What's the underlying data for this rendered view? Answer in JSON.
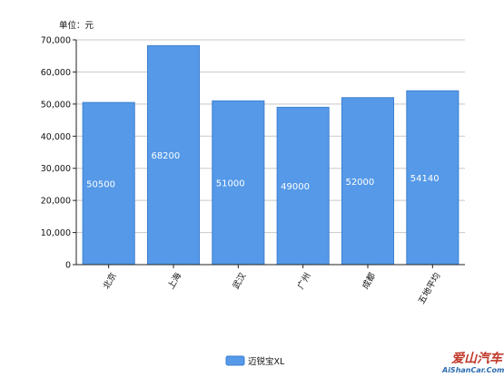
{
  "chart_data": {
    "type": "bar",
    "unit_label": "单位：元",
    "categories": [
      "北京",
      "上海",
      "武汉",
      "广州",
      "成都",
      "五地平均"
    ],
    "series": [
      {
        "name": "迈锐宝XL",
        "values": [
          50500,
          68200,
          51000,
          49000,
          52000,
          54140
        ],
        "color": "#5599e8"
      }
    ],
    "data_labels": [
      "50500",
      "68200",
      "51000",
      "49000",
      "52000",
      "54140"
    ],
    "ylim": [
      0,
      70000
    ],
    "yticks": [
      0,
      10000,
      20000,
      30000,
      40000,
      50000,
      60000,
      70000
    ],
    "ytick_labels": [
      "0",
      "10,000",
      "20,000",
      "30,000",
      "40,000",
      "50,000",
      "60,000",
      "70,000"
    ],
    "grid": true,
    "legend_position": "bottom",
    "watermark": {
      "text": "爱山汽车",
      "sub_text": "AiShanCar.Com"
    }
  }
}
